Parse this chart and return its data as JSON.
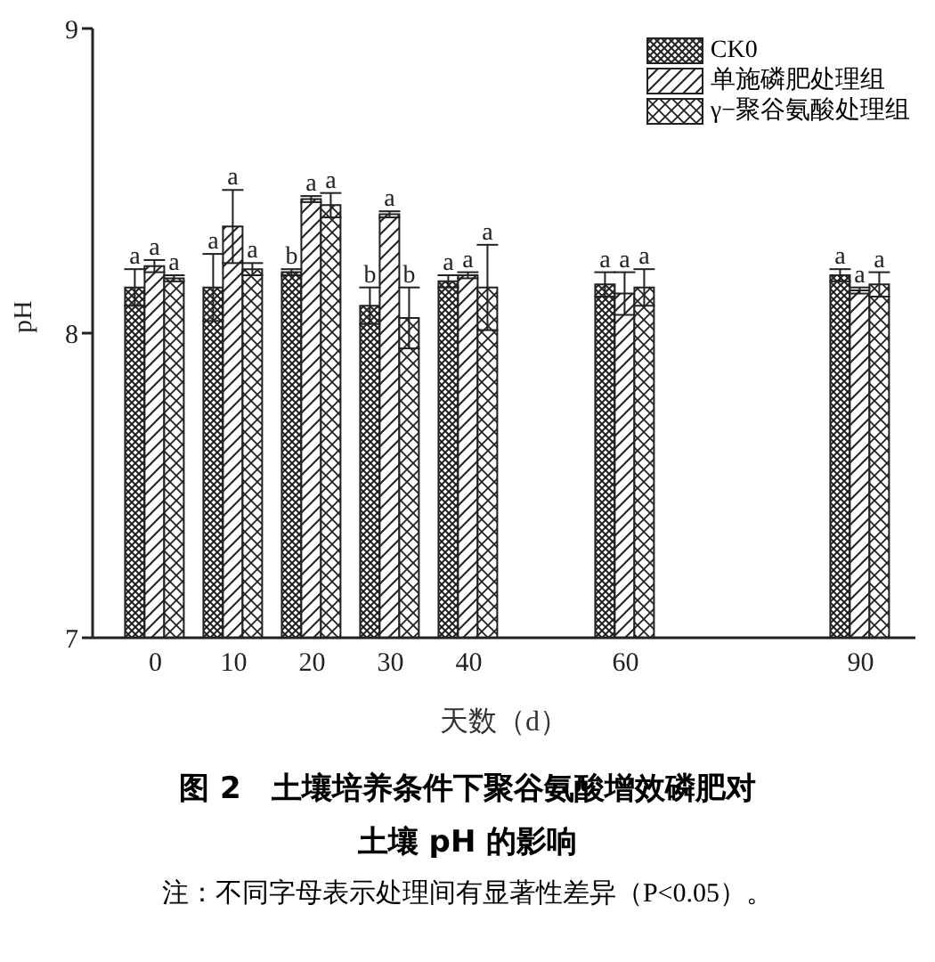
{
  "chart_data": {
    "type": "bar",
    "title": "图 2　土壤培养条件下聚谷氨酸增效磷肥对土壤 pH 的影响",
    "xlabel": "天数（d）",
    "ylabel": "pH",
    "x": [
      0,
      10,
      20,
      30,
      40,
      60,
      90
    ],
    "xlim": [
      -8,
      97
    ],
    "xticks": [
      0,
      10,
      20,
      30,
      40,
      60,
      90
    ],
    "ylim": [
      7,
      9
    ],
    "yticks": [
      7,
      8,
      9
    ],
    "legend": "top right",
    "grid": false,
    "series": [
      {
        "name": "CK0",
        "color": "#222222",
        "values": [
          8.15,
          8.15,
          8.2,
          8.09,
          8.17,
          8.16,
          8.19
        ],
        "errors": [
          0.06,
          0.11,
          0.01,
          0.06,
          0.02,
          0.04,
          0.02
        ],
        "value_labels": [
          "a",
          "a",
          "b",
          "b",
          "a",
          "a",
          "a"
        ]
      },
      {
        "name": "单施磷肥处理组",
        "color": "#222222",
        "values": [
          8.22,
          8.35,
          8.44,
          8.39,
          8.19,
          8.13,
          8.14
        ],
        "errors": [
          0.02,
          0.12,
          0.01,
          0.01,
          0.01,
          0.07,
          0.01
        ],
        "value_labels": [
          "a",
          "a",
          "a",
          "a",
          "a",
          "a",
          "a"
        ]
      },
      {
        "name": "γ−聚谷氨酸处理组",
        "color": "#222222",
        "values": [
          8.18,
          8.21,
          8.42,
          8.05,
          8.15,
          8.15,
          8.16
        ],
        "errors": [
          0.01,
          0.02,
          0.04,
          0.1,
          0.14,
          0.06,
          0.04
        ],
        "value_labels": [
          "a",
          "a",
          "a",
          "b",
          "a",
          "a",
          "a"
        ]
      }
    ],
    "annotations": [
      "注：不同字母表示处理间有显著性差异（P<0.05）。"
    ]
  }
}
